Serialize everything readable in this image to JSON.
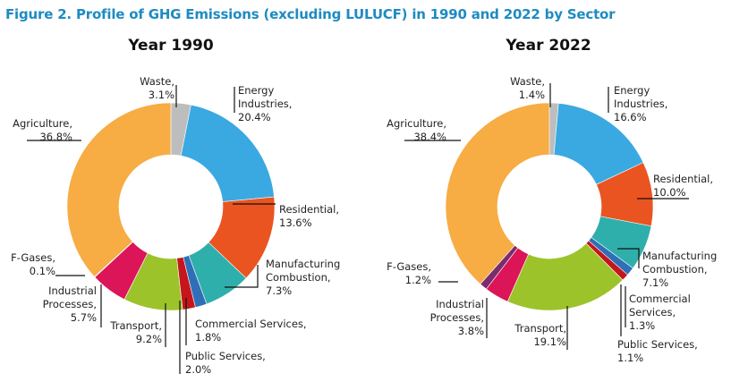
{
  "figure_title": "Figure 2. Profile of GHG Emissions (excluding LULUCF) in 1990 and 2022 by Sector",
  "colors": {
    "title": "#1e8bc3",
    "Waste": "#bdbdbd",
    "Energy Industries": "#3aa9e1",
    "Residential": "#ea5420",
    "Manufacturing Combustion": "#2fafab",
    "Commercial Services": "#2f6fb7",
    "Public Services": "#c5161d",
    "Transport": "#9cc32a",
    "Industrial Processes": "#dc1458",
    "F-Gases": "#7a2d6e",
    "Agriculture": "#f7ac44"
  },
  "chart_data": [
    {
      "type": "pie",
      "title": "Year 1990",
      "unit": "%",
      "slices": [
        {
          "sector": "Waste",
          "value": 3.1,
          "label_lines": [
            "Waste,",
            "3.1%"
          ]
        },
        {
          "sector": "Energy Industries",
          "value": 20.4,
          "label_lines": [
            "Energy",
            "Industries,",
            "20.4%"
          ]
        },
        {
          "sector": "Residential",
          "value": 13.6,
          "label_lines": [
            "Residential,",
            "13.6%"
          ]
        },
        {
          "sector": "Manufacturing Combustion",
          "value": 7.3,
          "label_lines": [
            "Manufacturing",
            "Combustion,",
            "7.3%"
          ]
        },
        {
          "sector": "Commercial Services",
          "value": 1.8,
          "label_lines": [
            "Commercial Services,",
            "1.8%"
          ]
        },
        {
          "sector": "Public Services",
          "value": 2.0,
          "label_lines": [
            "Public Services,",
            "2.0%"
          ]
        },
        {
          "sector": "Transport",
          "value": 9.2,
          "label_lines": [
            "Transport,",
            "9.2%"
          ]
        },
        {
          "sector": "Industrial Processes",
          "value": 5.7,
          "label_lines": [
            "Industrial",
            "Processes,",
            "5.7%"
          ]
        },
        {
          "sector": "F-Gases",
          "value": 0.1,
          "label_lines": [
            "F-Gases,",
            "0.1%"
          ]
        },
        {
          "sector": "Agriculture",
          "value": 36.8,
          "label_lines": [
            "Agriculture,",
            "36.8%"
          ]
        }
      ]
    },
    {
      "type": "pie",
      "title": "Year 2022",
      "unit": "%",
      "slices": [
        {
          "sector": "Waste",
          "value": 1.4,
          "label_lines": [
            "Waste,",
            "1.4%"
          ]
        },
        {
          "sector": "Energy Industries",
          "value": 16.6,
          "label_lines": [
            "Energy",
            "Industries,",
            "16.6%"
          ]
        },
        {
          "sector": "Residential",
          "value": 10.0,
          "label_lines": [
            "Residential,",
            "10.0%"
          ]
        },
        {
          "sector": "Manufacturing Combustion",
          "value": 7.1,
          "label_lines": [
            "Manufacturing",
            "Combustion,",
            "7.1%"
          ]
        },
        {
          "sector": "Commercial Services",
          "value": 1.3,
          "label_lines": [
            "Commercial",
            "Services,",
            "1.3%"
          ]
        },
        {
          "sector": "Public Services",
          "value": 1.1,
          "label_lines": [
            "Public Services,",
            "1.1%"
          ]
        },
        {
          "sector": "Transport",
          "value": 19.1,
          "label_lines": [
            "Transport,",
            "19.1%"
          ]
        },
        {
          "sector": "Industrial Processes",
          "value": 3.8,
          "label_lines": [
            "Industrial",
            "Processes,",
            "3.8%"
          ]
        },
        {
          "sector": "F-Gases",
          "value": 1.2,
          "label_lines": [
            "F-Gases,",
            "1.2%"
          ]
        },
        {
          "sector": "Agriculture",
          "value": 38.4,
          "label_lines": [
            "Agriculture,",
            "38.4%"
          ]
        }
      ]
    }
  ]
}
